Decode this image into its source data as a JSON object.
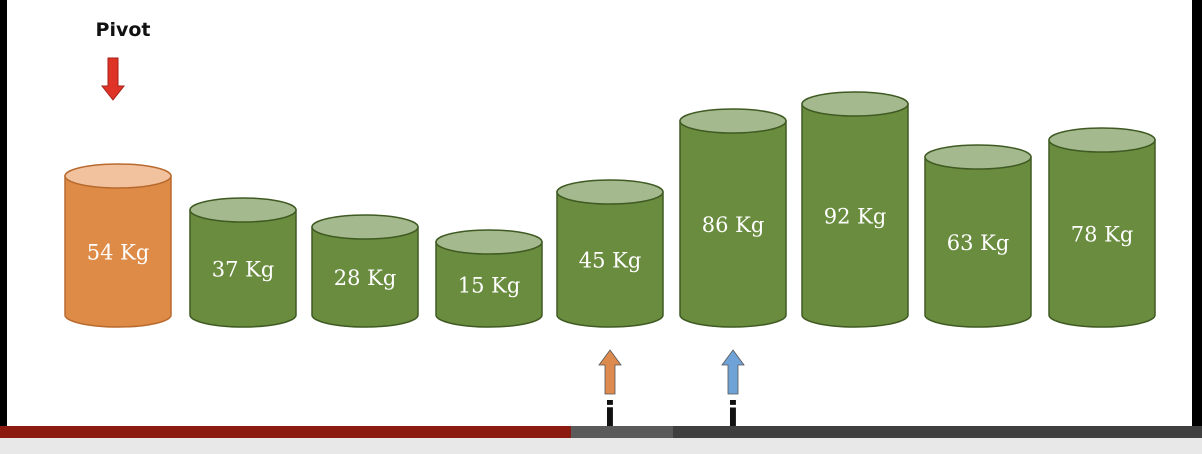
{
  "pivot": {
    "label": "Pivot"
  },
  "items": [
    {
      "label": "54 Kg",
      "weight": 54,
      "is_pivot": true
    },
    {
      "label": "37 Kg",
      "weight": 37
    },
    {
      "label": "28 Kg",
      "weight": 28
    },
    {
      "label": "15 Kg",
      "weight": 15
    },
    {
      "label": "45 Kg",
      "weight": 45
    },
    {
      "label": "86 Kg",
      "weight": 86
    },
    {
      "label": "92 Kg",
      "weight": 92
    },
    {
      "label": "63 Kg",
      "weight": 63
    },
    {
      "label": "78 Kg",
      "weight": 78
    }
  ],
  "pointers": {
    "j": {
      "label": "j",
      "index": 4,
      "color": "#dd8a4e"
    },
    "i": {
      "label": "i",
      "index": 5,
      "color": "#6fa3d8"
    }
  },
  "colors": {
    "pivot_body": "#de8b48",
    "pivot_top": "#f2c29f",
    "body": "#6a8c3f",
    "top": "#a4b98d",
    "pivot_arrow": "#e03327"
  },
  "video_progress": {
    "played": 0.475,
    "buffered": 0.56
  }
}
